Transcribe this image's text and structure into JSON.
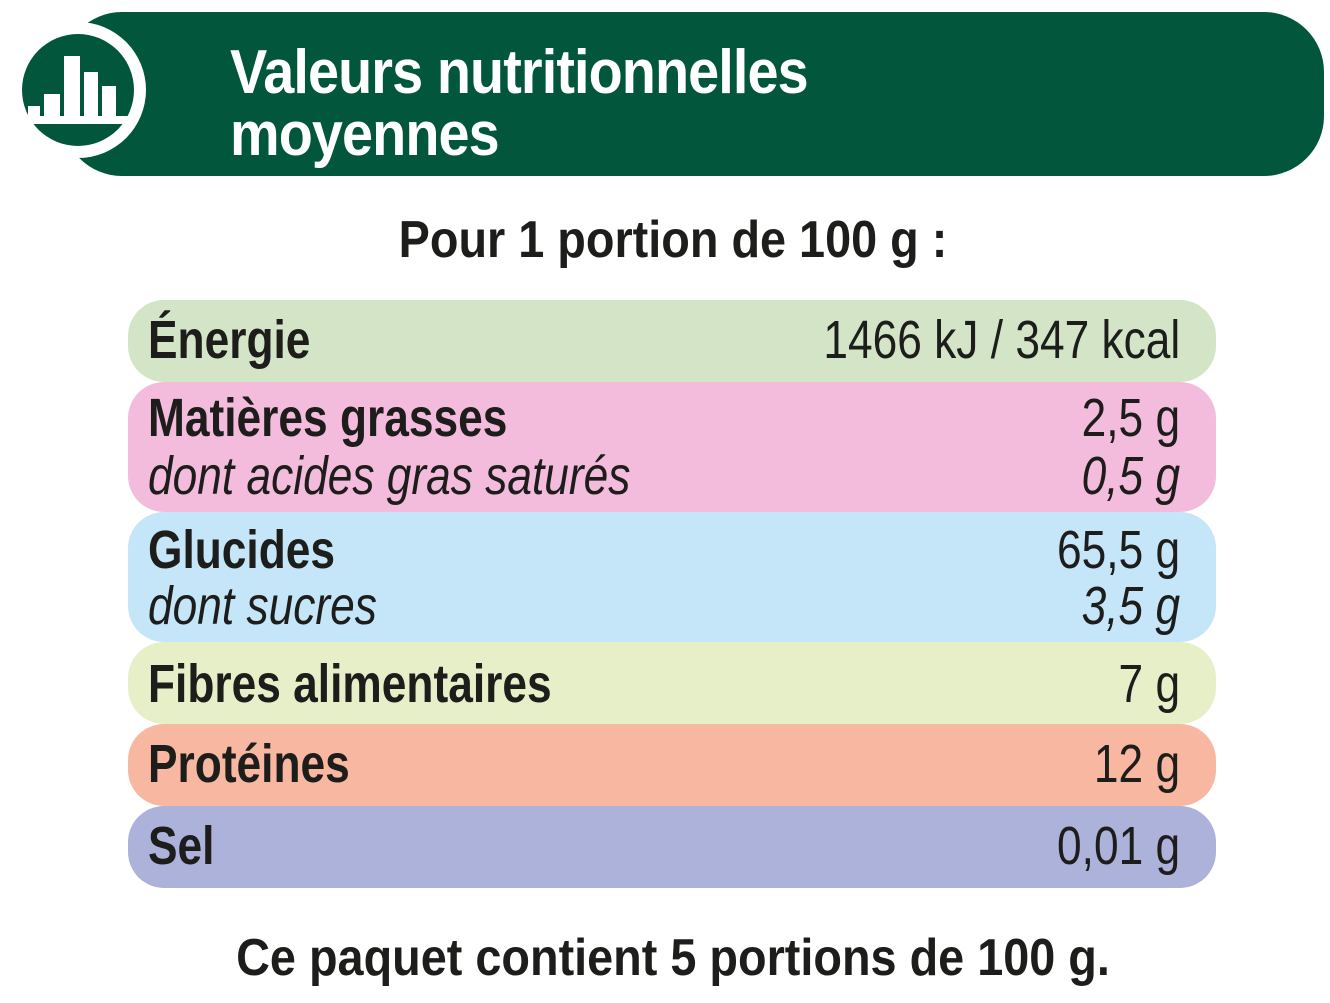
{
  "header": {
    "title": "Valeurs nutritionnelles\nmoyennes",
    "icon": "bar-chart-icon",
    "bg_color": "#01563c"
  },
  "portion_text": "Pour 1 portion de 100 g :",
  "rows": [
    {
      "label": "Énergie",
      "value": "1466 kJ / 347 kcal",
      "color": "#d3e5c6"
    },
    {
      "label": "Matières grasses",
      "value": "2,5 g",
      "sub_label": "dont acides gras saturés",
      "sub_value": "0,5 g",
      "color": "#f4bcdc"
    },
    {
      "label": "Glucides",
      "value": "65,5 g",
      "sub_label": "dont sucres",
      "sub_value": "3,5 g",
      "color": "#c5e5f8"
    },
    {
      "label": "Fibres alimentaires",
      "value": "7 g",
      "color": "#e6efc7"
    },
    {
      "label": "Protéines",
      "value": "12 g",
      "color": "#f7b7a0"
    },
    {
      "label": "Sel",
      "value": "0,01 g",
      "color": "#adb2da"
    }
  ],
  "footer_text": "Ce paquet contient 5 portions de 100 g."
}
